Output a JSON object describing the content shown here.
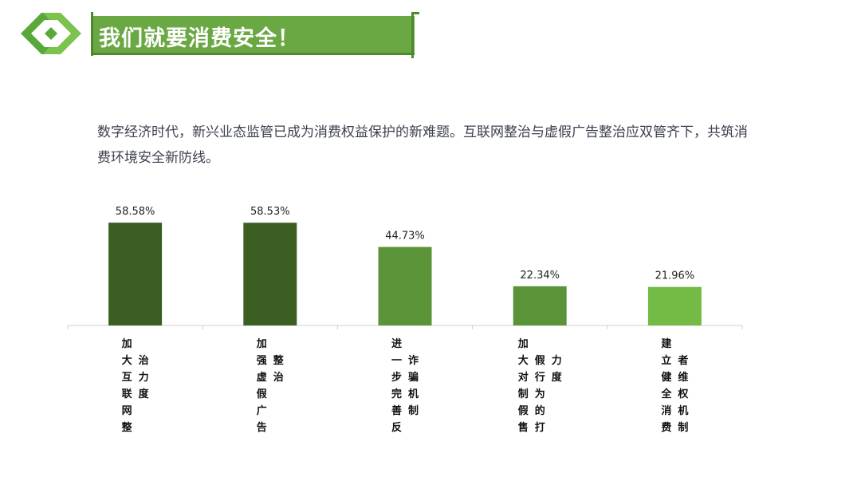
{
  "header": {
    "title": "我们就要消费安全！"
  },
  "intro": {
    "text": "数字经济时代，新兴业态监管已成为消费权益保护的新难题。互联网整治与虚假广告整治应双管齐下，共筑消费环境安全新防线。"
  },
  "colors": {
    "banner": "#6aa843",
    "bar_dark": "#3b5e22",
    "bar_mid": "#5b9438",
    "bar_light": "#73bb44"
  },
  "chart_data": {
    "type": "bar",
    "categories": [
      [
        "加大互联网整",
        "治力度"
      ],
      [
        "加强虚假广告",
        "整治"
      ],
      [
        "进一步完善反",
        "诈骗机制"
      ],
      [
        "加大对制假售",
        "假行为的打",
        "力度"
      ],
      [
        "建立健全消费",
        "者维权机制"
      ]
    ],
    "values": [
      58.58,
      58.53,
      44.73,
      22.34,
      21.96
    ],
    "value_labels": [
      "58.58%",
      "58.53%",
      "44.73%",
      "22.34%",
      "21.96%"
    ],
    "bar_colors": [
      "#3b5e22",
      "#3b5e22",
      "#5b9438",
      "#5b9438",
      "#73bb44"
    ],
    "ylim": [
      0,
      100
    ],
    "grid": false,
    "title": "",
    "xlabel": "",
    "ylabel": ""
  }
}
